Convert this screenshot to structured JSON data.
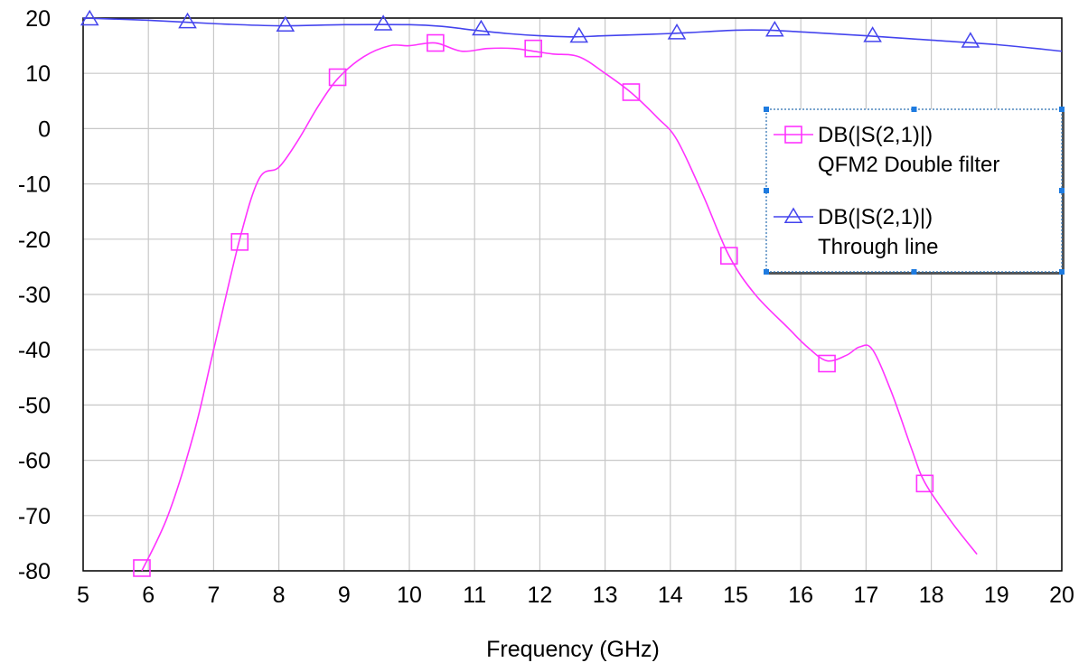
{
  "chart_data": {
    "type": "line",
    "title": "",
    "xlabel": "Frequency (GHz)",
    "ylabel": "",
    "xlim": [
      5,
      20
    ],
    "ylim": [
      -80,
      20
    ],
    "xticks": [
      5,
      6,
      7,
      8,
      9,
      10,
      11,
      12,
      13,
      14,
      15,
      16,
      17,
      18,
      19,
      20
    ],
    "yticks": [
      20,
      10,
      0,
      -10,
      -20,
      -30,
      -40,
      -50,
      -60,
      -70,
      -80
    ],
    "grid": true,
    "legend_position": "right",
    "series": [
      {
        "name": "DB(|S(2,1)|)",
        "name_line2": "QFM2 Double filter",
        "color": "#ff33ff",
        "marker": "square",
        "x": [
          5.9,
          6.3,
          6.7,
          7.0,
          7.4,
          7.7,
          8.0,
          8.3,
          8.6,
          8.9,
          9.3,
          9.7,
          10.0,
          10.4,
          10.8,
          11.2,
          11.6,
          11.9,
          12.2,
          12.6,
          13.0,
          13.4,
          13.8,
          14.1,
          14.5,
          14.9,
          15.3,
          15.8,
          16.1,
          16.4,
          16.7,
          16.9,
          17.1,
          17.4,
          17.7,
          17.9,
          18.3,
          18.7
        ],
        "y": [
          -80,
          -70,
          -55,
          -40,
          -20,
          -9,
          -7,
          -2,
          4,
          9,
          13,
          15,
          15,
          15.5,
          14,
          14.5,
          14.5,
          14,
          13.5,
          13,
          10,
          6.5,
          2,
          -2,
          -12,
          -23,
          -30,
          -36,
          -39.5,
          -42,
          -41,
          -39.5,
          -40,
          -48,
          -58,
          -64,
          -71,
          -77
        ],
        "markers_x": [
          5.9,
          7.4,
          8.9,
          10.4,
          11.9,
          13.4,
          14.9,
          16.4,
          17.9
        ],
        "markers_y": [
          -79.5,
          -20.5,
          9.3,
          15.5,
          14.5,
          6.6,
          -23,
          -42.5,
          -64.2
        ]
      },
      {
        "name": "DB(|S(2,1)|)",
        "name_line2": "Through line",
        "color": "#4444ee",
        "marker": "triangle",
        "x": [
          5.0,
          6.0,
          7.0,
          8.0,
          9.0,
          10.0,
          10.5,
          11.0,
          11.5,
          12.0,
          12.5,
          13.0,
          14.0,
          15.0,
          15.5,
          16.0,
          17.0,
          18.0,
          19.0,
          20.0
        ],
        "y": [
          20,
          19.6,
          19,
          18.6,
          18.8,
          18.8,
          18.5,
          17.8,
          17.2,
          16.8,
          16.6,
          16.8,
          17.2,
          17.8,
          17.8,
          17.5,
          16.8,
          16,
          15.2,
          14
        ],
        "markers_x": [
          5.1,
          6.6,
          8.1,
          9.6,
          11.1,
          12.6,
          14.1,
          15.6,
          17.1,
          18.6
        ],
        "markers_y": [
          19.8,
          19.3,
          18.7,
          18.9,
          18.0,
          16.7,
          17.3,
          17.8,
          16.8,
          15.8
        ]
      }
    ]
  }
}
